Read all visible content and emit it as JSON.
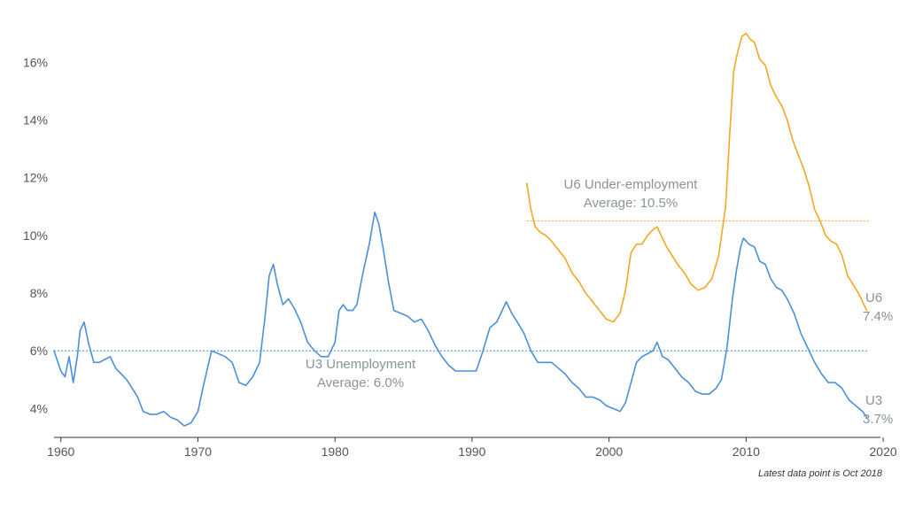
{
  "chart_data": {
    "type": "line",
    "title": "",
    "xlabel": "",
    "ylabel": "",
    "xlim": [
      1959.5,
      2019.8
    ],
    "ylim": [
      3.0,
      17.3
    ],
    "x_ticks": [
      1960,
      1970,
      1980,
      1990,
      2000,
      2010,
      2020
    ],
    "y_ticks": [
      4,
      6,
      8,
      10,
      12,
      14,
      16
    ],
    "y_tick_labels": [
      "4%",
      "6%",
      "8%",
      "10%",
      "12%",
      "14%",
      "16%"
    ],
    "grid": false,
    "colors": {
      "u3": "#4a90d9",
      "u6": "#f5a623",
      "label": "#8a9499"
    },
    "series": [
      {
        "id": "u3",
        "x": [
          1959.5,
          1960.0,
          1960.3,
          1960.6,
          1960.9,
          1961.2,
          1961.4,
          1961.7,
          1962.0,
          1962.4,
          1962.8,
          1963.2,
          1963.6,
          1964.0,
          1964.4,
          1964.8,
          1965.2,
          1965.6,
          1966.0,
          1966.5,
          1967.0,
          1967.5,
          1968.0,
          1968.5,
          1969.0,
          1969.5,
          1970.0,
          1970.4,
          1970.8,
          1971.0,
          1971.5,
          1972.0,
          1972.5,
          1973.0,
          1973.5,
          1974.0,
          1974.5,
          1974.9,
          1975.2,
          1975.5,
          1975.8,
          1976.2,
          1976.6,
          1977.0,
          1977.5,
          1978.0,
          1978.5,
          1979.0,
          1979.5,
          1980.0,
          1980.3,
          1980.6,
          1980.9,
          1981.3,
          1981.6,
          1982.0,
          1982.5,
          1982.9,
          1983.2,
          1983.5,
          1983.9,
          1984.3,
          1984.8,
          1985.3,
          1985.8,
          1986.3,
          1986.8,
          1987.3,
          1987.8,
          1988.3,
          1988.8,
          1989.3,
          1989.8,
          1990.3,
          1990.8,
          1991.3,
          1991.8,
          1992.2,
          1992.5,
          1992.9,
          1993.3,
          1993.8,
          1994.3,
          1994.8,
          1995.3,
          1995.8,
          1996.3,
          1996.8,
          1997.3,
          1997.8,
          1998.3,
          1998.8,
          1999.3,
          1999.8,
          2000.3,
          2000.8,
          2001.2,
          2001.6,
          2002.0,
          2002.4,
          2002.8,
          2003.2,
          2003.5,
          2003.9,
          2004.3,
          2004.8,
          2005.3,
          2005.8,
          2006.3,
          2006.8,
          2007.3,
          2007.8,
          2008.2,
          2008.6,
          2009.0,
          2009.3,
          2009.6,
          2009.8,
          2010.2,
          2010.6,
          2011.0,
          2011.4,
          2011.8,
          2012.2,
          2012.6,
          2013.0,
          2013.5,
          2014.0,
          2014.5,
          2015.0,
          2015.5,
          2016.0,
          2016.5,
          2017.0,
          2017.5,
          2018.0,
          2018.5,
          2018.8
        ],
        "values": [
          6.0,
          5.3,
          5.1,
          5.8,
          4.9,
          5.8,
          6.7,
          7.0,
          6.3,
          5.6,
          5.6,
          5.7,
          5.8,
          5.4,
          5.2,
          5.0,
          4.7,
          4.4,
          3.9,
          3.8,
          3.8,
          3.9,
          3.7,
          3.6,
          3.4,
          3.5,
          3.9,
          4.8,
          5.6,
          6.0,
          5.9,
          5.8,
          5.6,
          4.9,
          4.8,
          5.1,
          5.6,
          7.2,
          8.6,
          9.0,
          8.3,
          7.6,
          7.8,
          7.5,
          7.0,
          6.3,
          6.0,
          5.8,
          5.8,
          6.3,
          7.4,
          7.6,
          7.4,
          7.4,
          7.6,
          8.6,
          9.7,
          10.8,
          10.4,
          9.6,
          8.4,
          7.4,
          7.3,
          7.2,
          7.0,
          7.1,
          6.7,
          6.2,
          5.8,
          5.5,
          5.3,
          5.3,
          5.3,
          5.3,
          6.0,
          6.8,
          7.0,
          7.4,
          7.7,
          7.3,
          7.0,
          6.6,
          6.0,
          5.6,
          5.6,
          5.6,
          5.4,
          5.2,
          4.9,
          4.7,
          4.4,
          4.4,
          4.3,
          4.1,
          4.0,
          3.9,
          4.2,
          4.9,
          5.6,
          5.8,
          5.9,
          6.0,
          6.3,
          5.8,
          5.7,
          5.4,
          5.1,
          4.9,
          4.6,
          4.5,
          4.5,
          4.7,
          5.0,
          6.1,
          7.8,
          8.8,
          9.6,
          9.9,
          9.7,
          9.6,
          9.1,
          9.0,
          8.5,
          8.2,
          8.1,
          7.8,
          7.3,
          6.6,
          6.1,
          5.6,
          5.2,
          4.9,
          4.9,
          4.7,
          4.3,
          4.1,
          3.9,
          3.7
        ]
      },
      {
        "id": "u6",
        "x": [
          1994.0,
          1994.3,
          1994.6,
          1995.0,
          1995.4,
          1995.8,
          1996.3,
          1996.8,
          1997.3,
          1997.8,
          1998.3,
          1998.8,
          1999.3,
          1999.8,
          2000.3,
          2000.8,
          2001.2,
          2001.6,
          2002.0,
          2002.4,
          2002.8,
          2003.2,
          2003.5,
          2003.8,
          2004.2,
          2004.6,
          2005.0,
          2005.5,
          2006.0,
          2006.5,
          2007.0,
          2007.5,
          2008.0,
          2008.5,
          2008.8,
          2009.1,
          2009.4,
          2009.7,
          2010.0,
          2010.3,
          2010.6,
          2011.0,
          2011.4,
          2011.8,
          2012.2,
          2012.6,
          2013.0,
          2013.4,
          2013.8,
          2014.2,
          2014.6,
          2015.0,
          2015.4,
          2015.8,
          2016.2,
          2016.6,
          2017.0,
          2017.4,
          2017.8,
          2018.2,
          2018.5,
          2018.8
        ],
        "values": [
          11.8,
          10.9,
          10.3,
          10.1,
          10.0,
          9.8,
          9.5,
          9.2,
          8.7,
          8.4,
          8.0,
          7.7,
          7.4,
          7.1,
          7.0,
          7.3,
          8.1,
          9.4,
          9.7,
          9.7,
          10.0,
          10.2,
          10.3,
          10.0,
          9.6,
          9.3,
          9.0,
          8.7,
          8.3,
          8.1,
          8.2,
          8.5,
          9.3,
          11.0,
          13.5,
          15.7,
          16.4,
          16.9,
          17.0,
          16.8,
          16.7,
          16.1,
          15.9,
          15.2,
          14.8,
          14.5,
          14.0,
          13.3,
          12.8,
          12.3,
          11.7,
          10.9,
          10.5,
          10.0,
          9.8,
          9.7,
          9.3,
          8.6,
          8.3,
          8.0,
          7.7,
          7.4
        ]
      }
    ],
    "averages": [
      {
        "series": "u3",
        "value": 6.0,
        "x_start": 1959.5,
        "x_end": 2018.8
      },
      {
        "series": "u6",
        "value": 10.5,
        "x_start": 1994.0,
        "x_end": 2018.8
      }
    ],
    "annotations": {
      "u3_name": "U3 Unemployment",
      "u3_avg": "Average: 6.0%",
      "u6_name": "U6 Under-employment",
      "u6_avg": "Average: 10.5%",
      "u6_end_label": "U6",
      "u6_end_value": "7.4%",
      "u3_end_label": "U3",
      "u3_end_value": "3.7%"
    },
    "footnote": "Latest data point is Oct 2018"
  }
}
